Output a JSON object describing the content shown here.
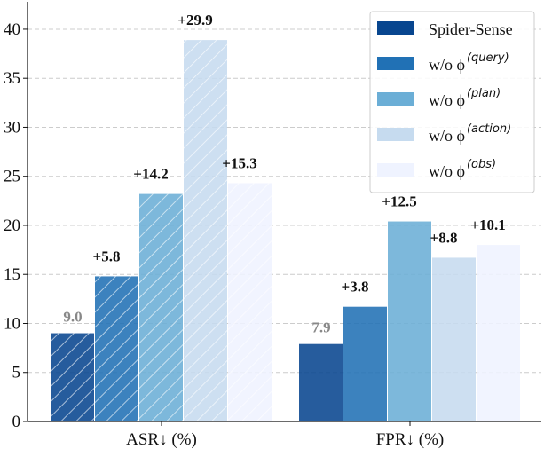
{
  "chart_data": {
    "type": "bar",
    "categories": [
      "ASR↓ (%)",
      "FPR↓ (%)"
    ],
    "series": [
      {
        "name": "Spider-Sense",
        "legend_main": "Spider-Sense",
        "legend_sup": "",
        "color": "#08468f",
        "values": [
          9.0,
          7.9
        ],
        "labels": [
          "9.0",
          "7.9"
        ]
      },
      {
        "name": "w/o φ(query)",
        "legend_main": "w/o ϕ",
        "legend_sup": "(query)",
        "color": "#2171b5",
        "values": [
          14.8,
          11.7
        ],
        "labels": [
          "+5.8",
          "+3.8"
        ]
      },
      {
        "name": "w/o φ(plan)",
        "legend_main": "w/o ϕ",
        "legend_sup": "(plan)",
        "color": "#6baed6",
        "values": [
          23.2,
          20.4
        ],
        "labels": [
          "+14.2",
          "+12.5"
        ]
      },
      {
        "name": "w/o φ(action)",
        "legend_main": "w/o ϕ",
        "legend_sup": "(action)",
        "color": "#c6dbef",
        "values": [
          38.9,
          16.7
        ],
        "labels": [
          "+29.9",
          "+8.8"
        ]
      },
      {
        "name": "w/o φ(obs)",
        "legend_main": "w/o ϕ",
        "legend_sup": "(obs)",
        "color": "#eff3ff",
        "values": [
          24.3,
          18.0
        ],
        "labels": [
          "+15.3",
          "+10.1"
        ]
      }
    ],
    "hatched_category": "ASR↓ (%)",
    "yticks": [
      0,
      5,
      10,
      15,
      20,
      25,
      30,
      35,
      40
    ],
    "ylim": [
      0,
      42.8
    ],
    "grid": "y dashed",
    "legend_position": "top-right",
    "title": "",
    "xlabel": "",
    "ylabel": ""
  }
}
